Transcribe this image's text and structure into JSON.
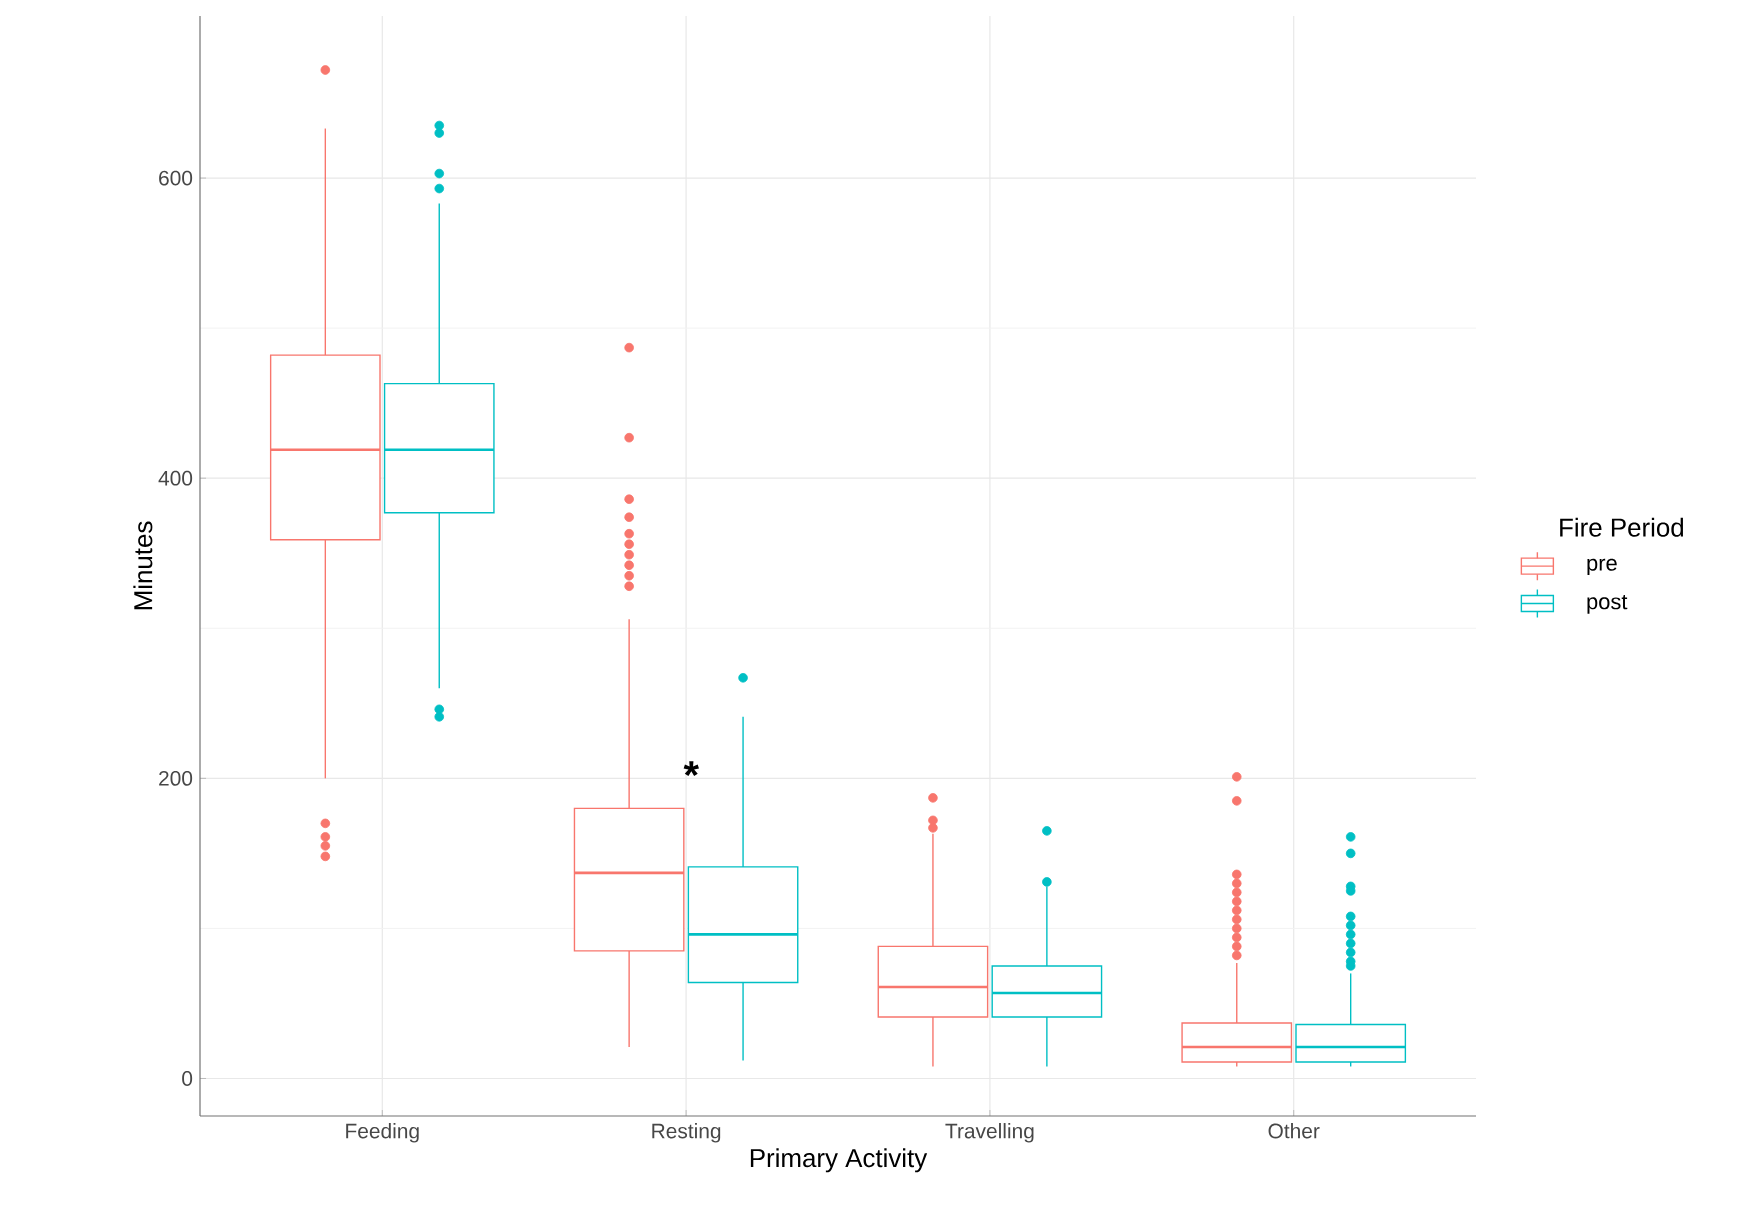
{
  "chart_data": {
    "type": "box",
    "xlabel": "Primary Activity",
    "ylabel": "Minutes",
    "legend_title": "Fire Period",
    "categories": [
      "Feeding",
      "Resting",
      "Travelling",
      "Other"
    ],
    "ylim": [
      -25,
      708
    ],
    "yticks": [
      0,
      200,
      400,
      600
    ],
    "grid": true,
    "legend": "right",
    "marker": "circle",
    "annotations": [
      "*"
    ],
    "series": [
      {
        "name": "pre",
        "color": "#f8766d",
        "boxes": [
          {
            "low": 200,
            "q1": 359,
            "median": 419,
            "q3": 482,
            "high": 633,
            "outliers": [
              672,
              170,
              161,
              155,
              148
            ]
          },
          {
            "low": 21,
            "q1": 85,
            "median": 137,
            "q3": 180,
            "high": 306,
            "outliers": [
              487,
              427,
              386,
              374,
              363,
              356,
              349,
              342,
              335,
              328
            ]
          },
          {
            "low": 8,
            "q1": 41,
            "median": 61,
            "q3": 88,
            "high": 163,
            "outliers": [
              187,
              172,
              167
            ]
          },
          {
            "low": 8,
            "q1": 11,
            "median": 21,
            "q3": 37,
            "high": 77,
            "outliers": [
              201,
              185,
              136,
              130,
              124,
              118,
              112,
              106,
              100,
              94,
              88,
              82
            ]
          }
        ]
      },
      {
        "name": "post",
        "color": "#00bfc4",
        "boxes": [
          {
            "low": 260,
            "q1": 377,
            "median": 419,
            "q3": 463,
            "high": 583,
            "outliers": [
              635,
              630,
              603,
              593,
              246,
              241
            ]
          },
          {
            "low": 12,
            "q1": 64,
            "median": 96,
            "q3": 141,
            "high": 241,
            "outliers": [
              267
            ]
          },
          {
            "low": 8,
            "q1": 41,
            "median": 57,
            "q3": 75,
            "high": 128,
            "outliers": [
              165,
              131
            ]
          },
          {
            "low": 8,
            "q1": 11,
            "median": 21,
            "q3": 36,
            "high": 70,
            "outliers": [
              161,
              150,
              128,
              125,
              108,
              102,
              96,
              90,
              84,
              78,
              75
            ]
          }
        ]
      }
    ]
  }
}
